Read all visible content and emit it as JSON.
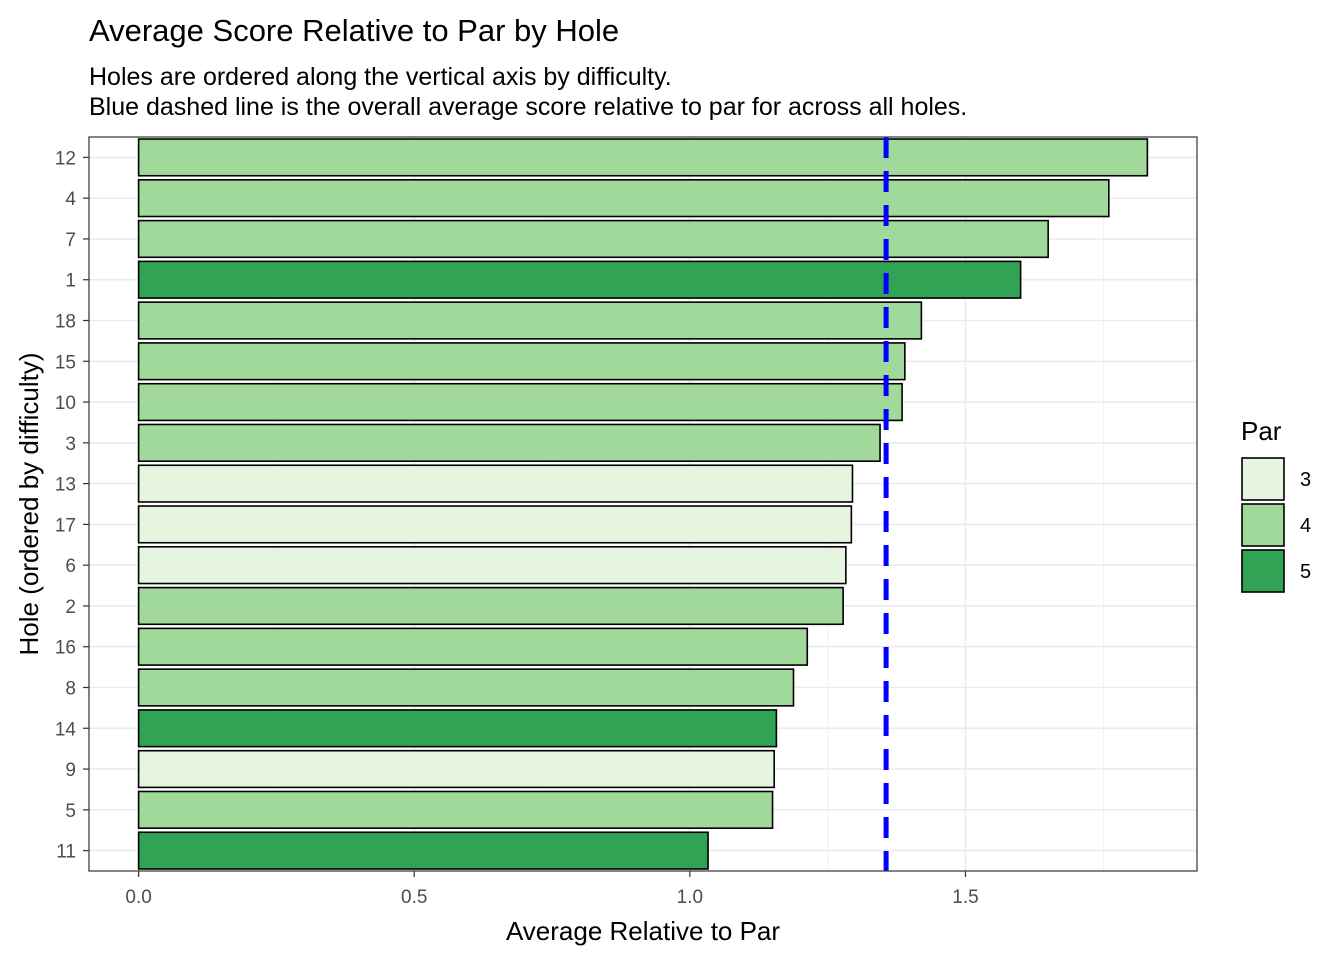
{
  "chart_data": {
    "type": "bar",
    "orientation": "horizontal",
    "title": "Average Score Relative to Par by Hole",
    "subtitle_lines": [
      "Holes are ordered along the vertical axis by difficulty.",
      "Blue dashed line is the overall average score relative to par for across all holes."
    ],
    "xlabel": "Average Relative to Par",
    "ylabel": "Hole (ordered by difficulty)",
    "xlim": [
      -0.09,
      1.92
    ],
    "x_ticks": [
      {
        "value": 0.0,
        "label": "0.0"
      },
      {
        "value": 0.5,
        "label": "0.5"
      },
      {
        "value": 1.0,
        "label": "1.0"
      },
      {
        "value": 1.5,
        "label": "1.5"
      }
    ],
    "categories": [
      "12",
      "4",
      "7",
      "1",
      "18",
      "15",
      "10",
      "3",
      "13",
      "17",
      "6",
      "2",
      "16",
      "8",
      "14",
      "9",
      "5",
      "11"
    ],
    "values": [
      1.83,
      1.76,
      1.65,
      1.6,
      1.42,
      1.39,
      1.385,
      1.345,
      1.295,
      1.293,
      1.283,
      1.278,
      1.213,
      1.188,
      1.157,
      1.153,
      1.15,
      1.033
    ],
    "par": [
      4,
      4,
      4,
      5,
      4,
      4,
      4,
      4,
      3,
      3,
      3,
      4,
      4,
      4,
      5,
      3,
      4,
      5
    ],
    "reference_line": {
      "value": 1.356,
      "color": "#0000ff",
      "style": "dashed"
    },
    "grid": true,
    "legend": {
      "title": "Par",
      "position": "right",
      "items": [
        {
          "label": "3",
          "color": "#e5f5e0"
        },
        {
          "label": "4",
          "color": "#a1d99b"
        },
        {
          "label": "5",
          "color": "#31a354"
        }
      ]
    },
    "bar_outline_color": "#000000"
  }
}
